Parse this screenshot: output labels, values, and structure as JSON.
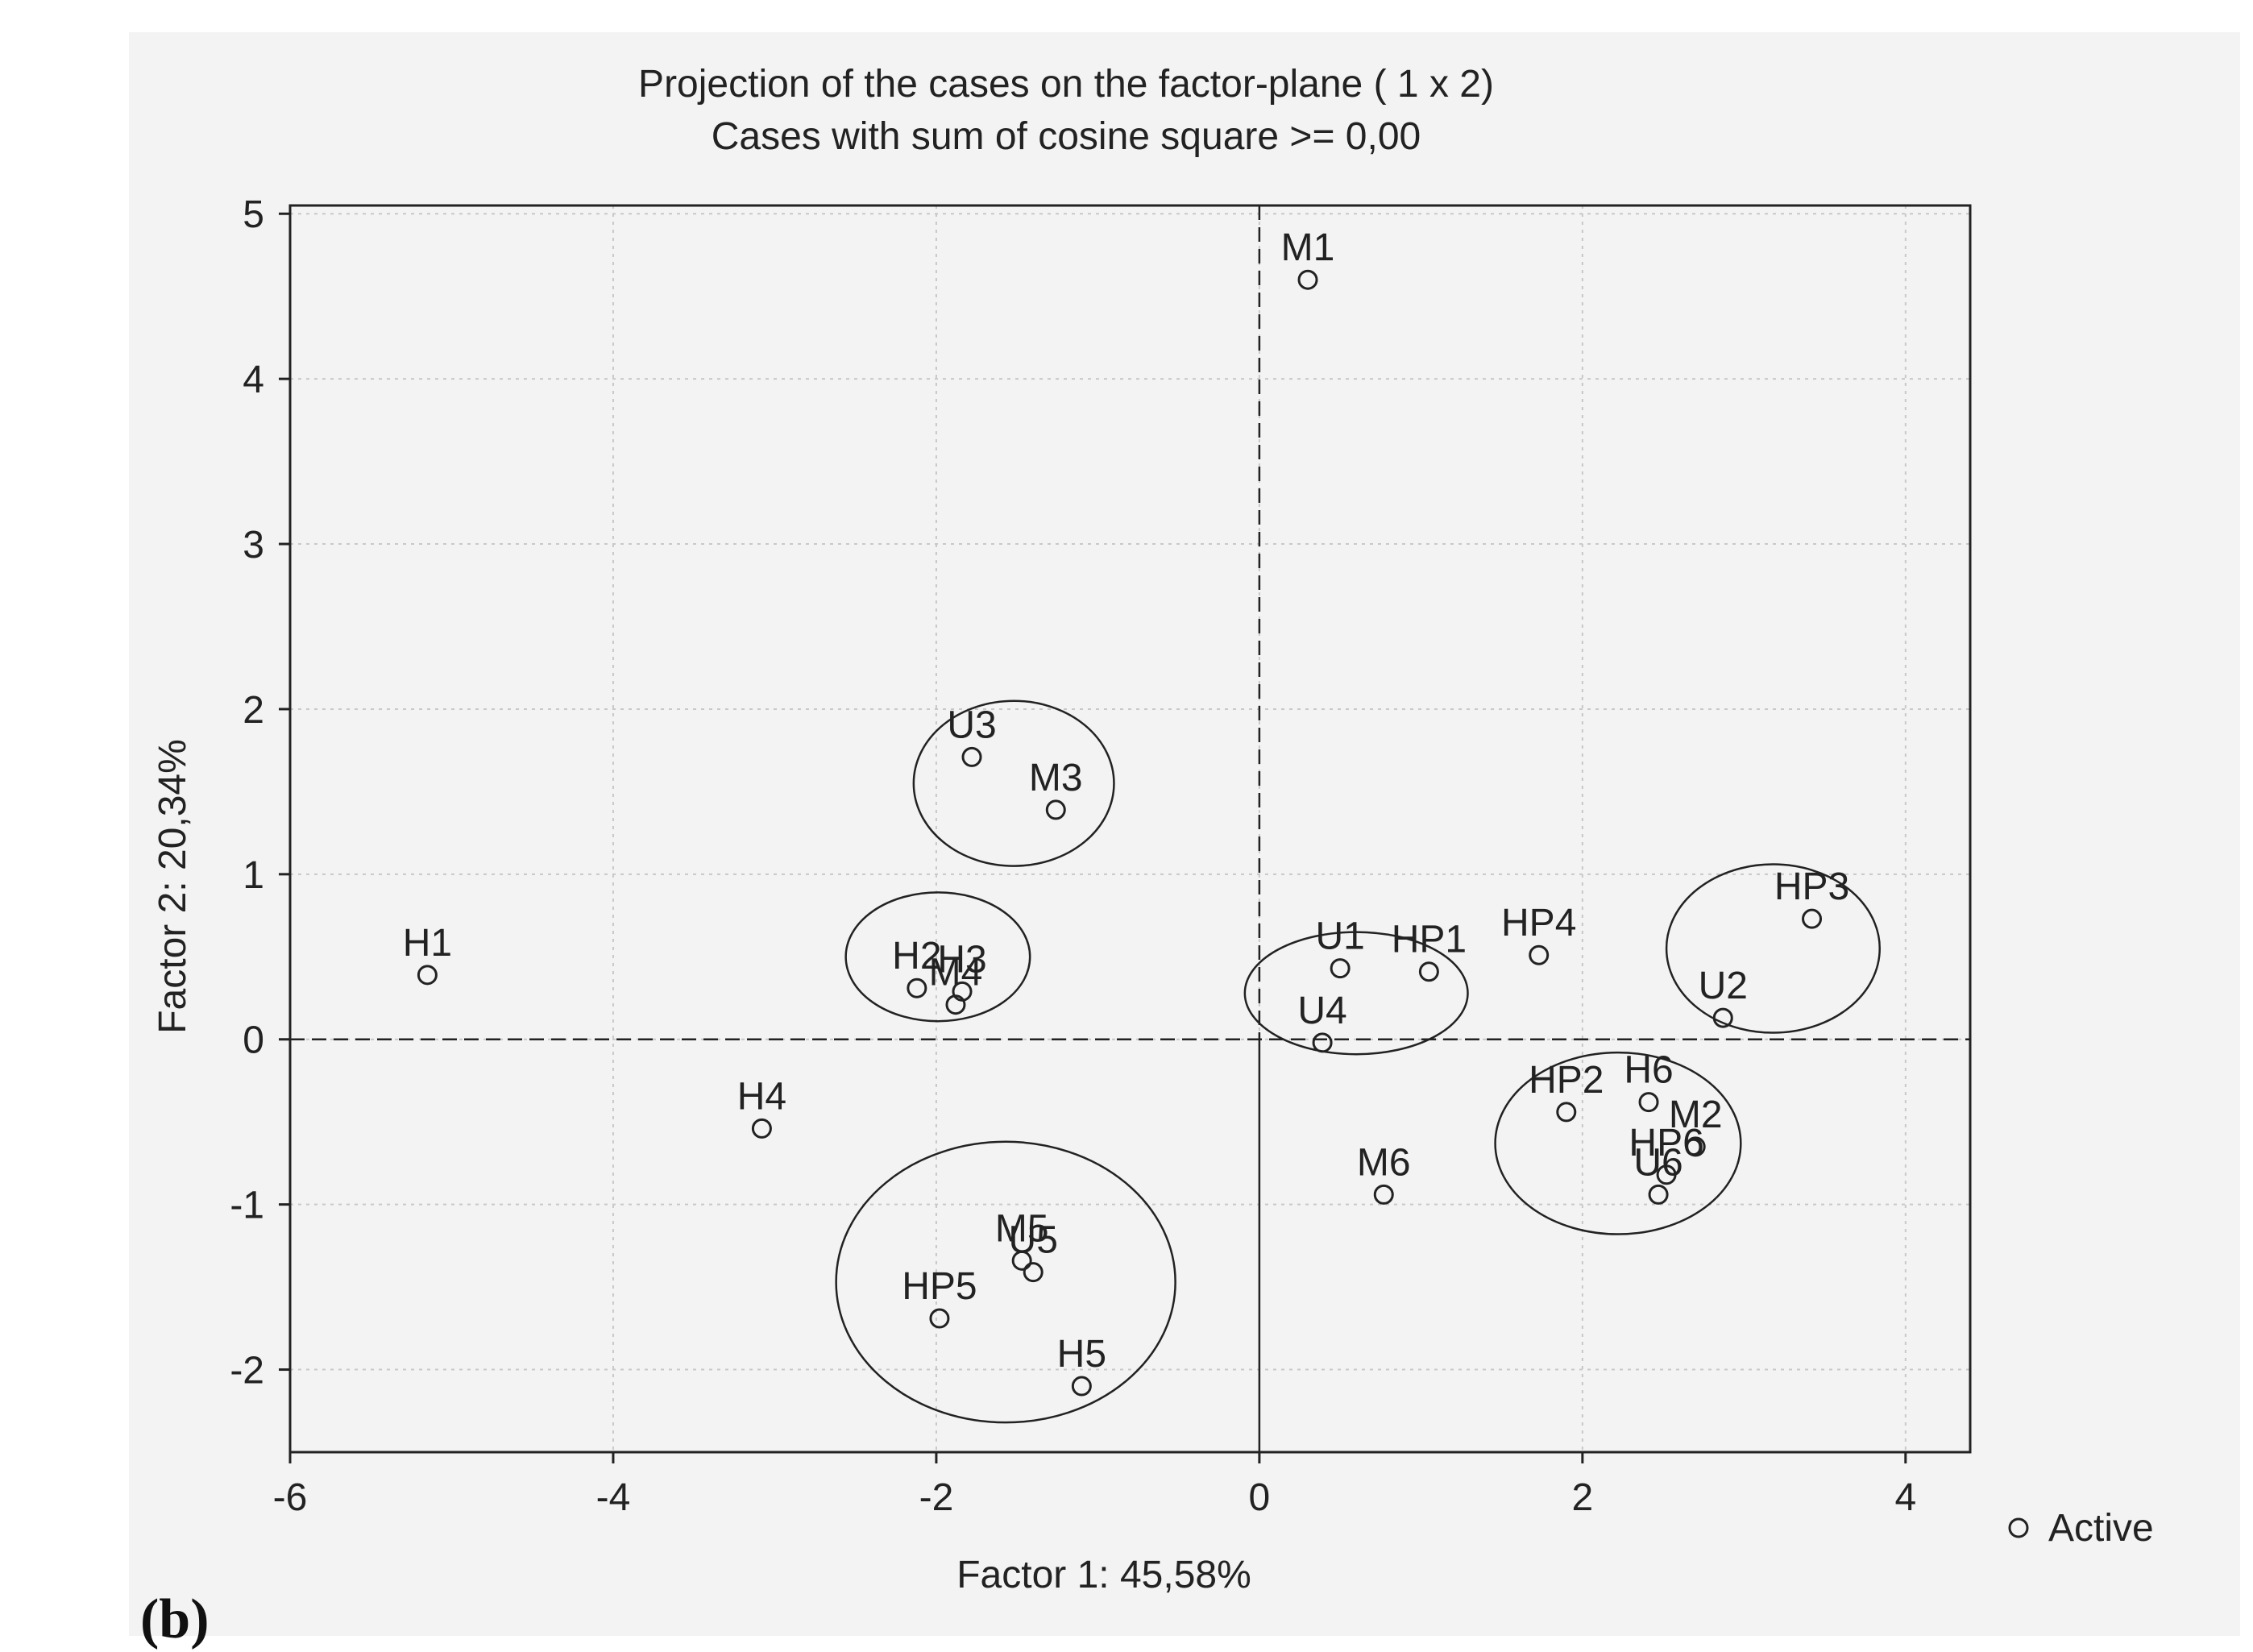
{
  "panel_label": "(b)",
  "chart_data": {
    "type": "scatter",
    "title": "Projection of the cases on the factor-plane (  1 x   2)",
    "subtitle": "Cases with sum of cosine square >=  0,00",
    "xlabel": "Factor 1: 45,58%",
    "ylabel": "Factor 2: 20,34%",
    "xlim": [
      -6,
      4.4
    ],
    "ylim": [
      -2.5,
      5.05
    ],
    "xticks": [
      -6,
      -4,
      -2,
      0,
      2,
      4
    ],
    "yticks": [
      -2,
      -1,
      0,
      1,
      2,
      3,
      4,
      5
    ],
    "xtick_labels": [
      "-6",
      "-4",
      "-2",
      "0",
      "2",
      "4"
    ],
    "ytick_labels": [
      "-2",
      "-1",
      "0",
      "1",
      "2",
      "3",
      "4",
      "5"
    ],
    "grid": true,
    "legend": {
      "position": "bottom-right",
      "entries": [
        "Active"
      ]
    },
    "series": [
      {
        "name": "Active",
        "points": [
          {
            "label": "M1",
            "x": 0.3,
            "y": 4.6
          },
          {
            "label": "U3",
            "x": -1.78,
            "y": 1.71
          },
          {
            "label": "M3",
            "x": -1.26,
            "y": 1.39
          },
          {
            "label": "H1",
            "x": -5.15,
            "y": 0.39
          },
          {
            "label": "H2",
            "x": -2.12,
            "y": 0.31
          },
          {
            "label": "H3",
            "x": -1.84,
            "y": 0.29
          },
          {
            "label": "M4",
            "x": -1.88,
            "y": 0.21
          },
          {
            "label": "U1",
            "x": 0.5,
            "y": 0.43
          },
          {
            "label": "HP1",
            "x": 1.05,
            "y": 0.41
          },
          {
            "label": "HP4",
            "x": 1.73,
            "y": 0.51
          },
          {
            "label": "HP3",
            "x": 3.42,
            "y": 0.73
          },
          {
            "label": "U2",
            "x": 2.87,
            "y": 0.13
          },
          {
            "label": "U4",
            "x": 0.39,
            "y": -0.02
          },
          {
            "label": "H4",
            "x": -3.08,
            "y": -0.54
          },
          {
            "label": "HP2",
            "x": 1.9,
            "y": -0.44
          },
          {
            "label": "H6",
            "x": 2.41,
            "y": -0.38
          },
          {
            "label": "M2",
            "x": 2.7,
            "y": -0.65
          },
          {
            "label": "HP6",
            "x": 2.52,
            "y": -0.82
          },
          {
            "label": "U6",
            "x": 2.47,
            "y": -0.94
          },
          {
            "label": "M6",
            "x": 0.77,
            "y": -0.94
          },
          {
            "label": "M5",
            "x": -1.47,
            "y": -1.34
          },
          {
            "label": "U5",
            "x": -1.4,
            "y": -1.41
          },
          {
            "label": "HP5",
            "x": -1.98,
            "y": -1.69
          },
          {
            "label": "H5",
            "x": -1.1,
            "y": -2.1
          }
        ]
      }
    ],
    "annotations": {
      "reference_lines": [
        {
          "axis": "x",
          "value": 0,
          "style": "dashed"
        },
        {
          "axis": "y",
          "value": 0,
          "style": "dashed"
        }
      ],
      "cluster_ellipses": [
        {
          "members": [
            "U3",
            "M3"
          ],
          "cx": -1.52,
          "cy": 1.55,
          "rx": 0.62,
          "ry": 0.5
        },
        {
          "members": [
            "H2",
            "H3",
            "M4"
          ],
          "cx": -1.99,
          "cy": 0.5,
          "rx": 0.57,
          "ry": 0.39
        },
        {
          "members": [
            "U1",
            "HP1",
            "U4"
          ],
          "cx": 0.6,
          "cy": 0.28,
          "rx": 0.69,
          "ry": 0.37
        },
        {
          "members": [
            "HP3",
            "U2"
          ],
          "cx": 3.18,
          "cy": 0.55,
          "rx": 0.66,
          "ry": 0.51
        },
        {
          "members": [
            "HP2",
            "H6",
            "M2",
            "HP6",
            "U6"
          ],
          "cx": 2.22,
          "cy": -0.63,
          "rx": 0.76,
          "ry": 0.55
        },
        {
          "members": [
            "M5",
            "U5",
            "HP5",
            "H5"
          ],
          "cx": -1.57,
          "cy": -1.47,
          "rx": 1.05,
          "ry": 0.85
        }
      ]
    }
  }
}
